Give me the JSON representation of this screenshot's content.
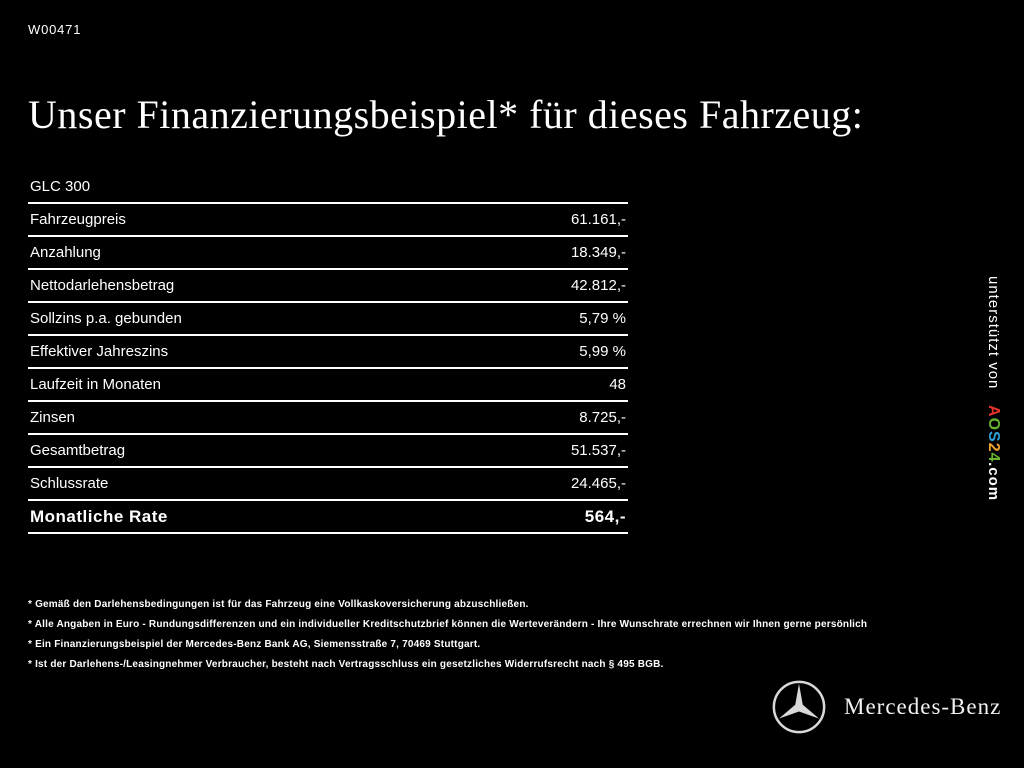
{
  "window": {
    "ref_code": "W00471"
  },
  "header": {
    "title": "Unser Finanzierungsbeispiel* für dieses Fahrzeug:"
  },
  "finance_table": {
    "model": "GLC 300",
    "rows": [
      {
        "label": "Fahrzeugpreis",
        "value": "61.161,-"
      },
      {
        "label": "Anzahlung",
        "value": "18.349,-"
      },
      {
        "label": "Nettodarlehensbetrag",
        "value": "42.812,-"
      },
      {
        "label": "Sollzins p.a. gebunden",
        "value": "5,79 %"
      },
      {
        "label": "Effektiver Jahreszins",
        "value": "5,99 %"
      },
      {
        "label": "Laufzeit in Monaten",
        "value": "48"
      },
      {
        "label": "Zinsen",
        "value": "8.725,-"
      },
      {
        "label": "Gesamtbetrag",
        "value": "51.537,-"
      },
      {
        "label": "Schlussrate",
        "value": "24.465,-"
      },
      {
        "label": "Monatliche Rate",
        "value": "564,-"
      }
    ]
  },
  "sidebar": {
    "supported_by_label": "unterstützt von ",
    "brand": {
      "letters": [
        {
          "char": "A",
          "color": "#e63329"
        },
        {
          "char": "O",
          "color": "#66b32e"
        },
        {
          "char": "S",
          "color": "#2e9fd4"
        },
        {
          "char": "2",
          "color": "#f0a22e"
        },
        {
          "char": "4",
          "color": "#66b32e"
        }
      ],
      "suffix": ".com"
    }
  },
  "footnotes": [
    "* Gemäß den Darlehensbedingungen ist für das Fahrzeug eine Vollkaskoversicherung abzuschließen.",
    "* Alle Angaben in Euro - Rundungsdifferenzen und ein individueller Kreditschutzbrief können die Werteverändern - Ihre Wunschrate errechnen wir Ihnen gerne persönlich",
    "* Ein Finanzierungsbeispiel der Mercedes-Benz Bank AG, Siemensstraße 7, 70469 Stuttgart.",
    "* Ist der Darlehens-/Leasingnehmer Verbraucher, besteht nach Vertragsschluss ein gesetzliches Widerrufsrecht nach § 495 BGB."
  ],
  "footer": {
    "brand_name": "Mercedes-Benz"
  },
  "colors": {
    "background": "#000000",
    "text": "#ffffff"
  }
}
